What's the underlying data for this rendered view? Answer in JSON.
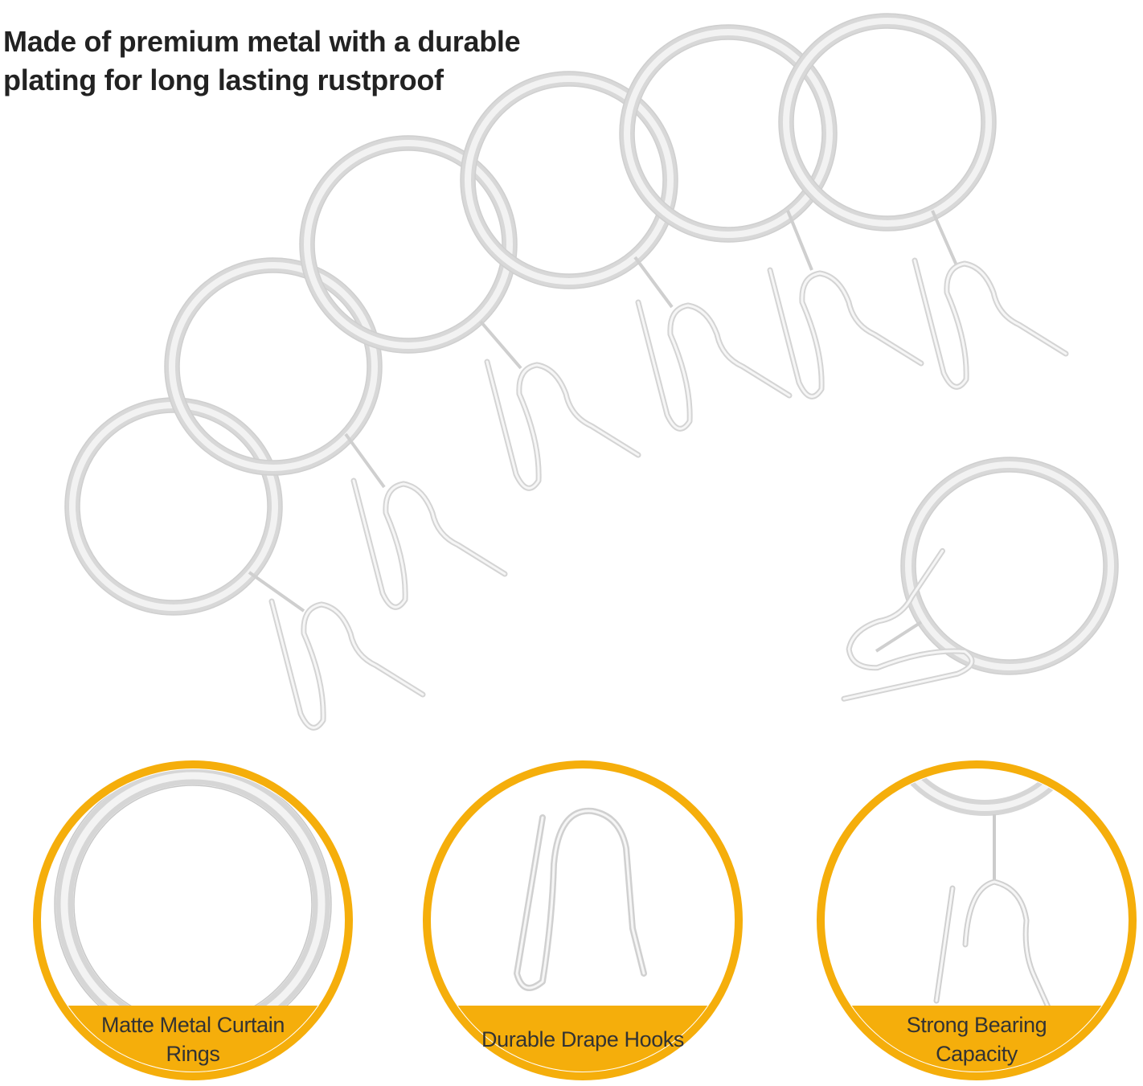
{
  "headline": {
    "line1": "Made of premium metal with a durable",
    "line2": "plating for long lasting rustproof"
  },
  "colors": {
    "accent": "#F5AE0B",
    "metal_stroke": "#D6D6D6",
    "metal_highlight": "#F4F4F4",
    "text": "#333333"
  },
  "illustration": {
    "icon": "curtain-rings-with-hooks-icon"
  },
  "features": [
    {
      "label_line1": "Matte Metal Curtain",
      "label_line2": "Rings",
      "icon": "ring-icon"
    },
    {
      "label_line1": "Durable Drape Hooks",
      "label_line2": "",
      "icon": "drape-hook-icon"
    },
    {
      "label_line1": "Strong Bearing",
      "label_line2": "Capacity",
      "icon": "ring-and-hook-icon"
    }
  ]
}
